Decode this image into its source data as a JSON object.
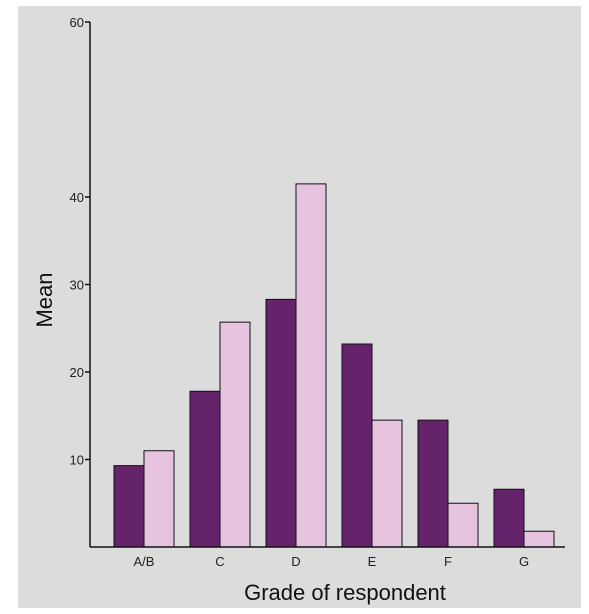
{
  "chart_data": {
    "type": "bar",
    "title": "",
    "xlabel": "Grade of respondent",
    "ylabel": "Mean",
    "categories": [
      "A/B",
      "C",
      "D",
      "E",
      "F",
      "G"
    ],
    "series": [
      {
        "values": [
          9.3,
          17.8,
          28.3,
          23.2,
          14.5,
          6.6
        ]
      },
      {
        "values": [
          11.0,
          25.7,
          41.5,
          14.5,
          5.0,
          1.8
        ]
      }
    ],
    "ylim": [
      0,
      60
    ],
    "yticks": [
      10,
      20,
      30,
      40,
      60
    ],
    "grid": false,
    "legend": "none",
    "colors": {
      "background": "#dcdcdc",
      "series": [
        "#64236a",
        "#e6c3df"
      ],
      "bar_outline": "#111111",
      "axis": "#111111"
    }
  }
}
